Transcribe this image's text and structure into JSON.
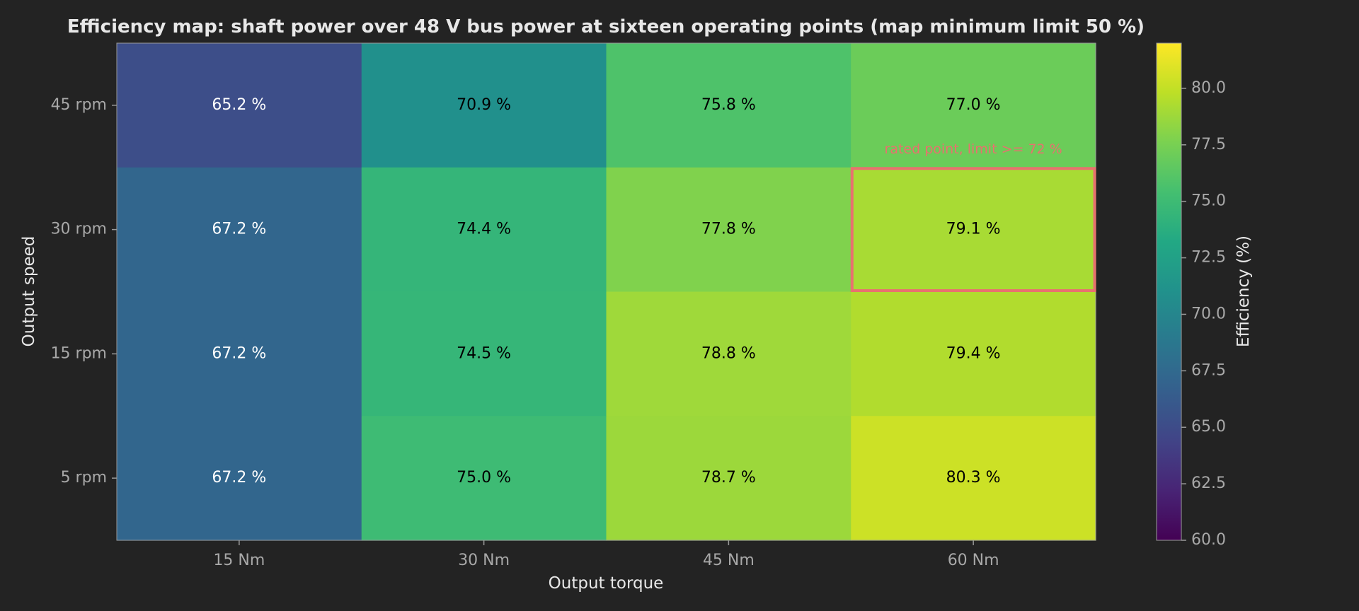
{
  "chart_data": {
    "type": "heatmap",
    "title": "Efficiency map: shaft power over 48 V bus power at sixteen operating points (map minimum limit 50 %)",
    "xlabel": "Output torque",
    "ylabel": "Output speed",
    "x_categories": [
      "15 Nm",
      "30 Nm",
      "45 Nm",
      "60 Nm"
    ],
    "y_categories": [
      "45 rpm",
      "30 rpm",
      "15 rpm",
      "5 rpm"
    ],
    "values": [
      [
        65.2,
        70.9,
        75.8,
        77.0
      ],
      [
        67.2,
        74.4,
        77.8,
        79.1
      ],
      [
        67.2,
        74.5,
        78.8,
        79.4
      ],
      [
        67.2,
        75.0,
        78.7,
        80.3
      ]
    ],
    "cell_labels": [
      [
        "65.2 %",
        "70.9 %",
        "75.8 %",
        "77.0 %"
      ],
      [
        "67.2 %",
        "74.4 %",
        "77.8 %",
        "79.1 %"
      ],
      [
        "67.2 %",
        "74.5 %",
        "78.8 %",
        "79.4 %"
      ],
      [
        "67.2 %",
        "75.0 %",
        "78.7 %",
        "80.3 %"
      ]
    ],
    "colorscale": "viridis",
    "colorbar": {
      "label": "Efficiency (%)",
      "range": [
        60,
        82
      ],
      "ticks": [
        60.0,
        62.5,
        65.0,
        67.5,
        70.0,
        72.5,
        75.0,
        77.5,
        80.0
      ],
      "tick_labels": [
        "60.0",
        "62.5",
        "65.0",
        "67.5",
        "70.0",
        "72.5",
        "75.0",
        "77.5",
        "80.0"
      ]
    },
    "annotation": {
      "text": "rated point, limit >= 72 %",
      "row": 1,
      "col": 3,
      "color": "#e8716f"
    },
    "grid": false
  }
}
